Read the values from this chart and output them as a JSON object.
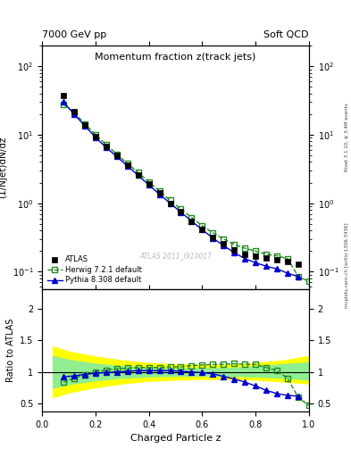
{
  "title_main": "Momentum fraction z(track jets)",
  "top_left_label": "7000 GeV pp",
  "top_right_label": "Soft QCD",
  "ylabel_main": "(1/Njet)dN/dz",
  "ylabel_ratio": "Ratio to ATLAS",
  "xlabel": "Charged Particle z",
  "watermark": "ATLAS 2011_I919017",
  "right_label_top": "Rivet 3.1.10, ≥ 3.4M events",
  "right_label_bot": "mcplots.cern.ch [arXiv:1306.3436]",
  "xlim": [
    0.0,
    1.0
  ],
  "ylim_main": [
    0.055,
    200
  ],
  "ylim_ratio": [
    0.38,
    2.3
  ],
  "atlas_x": [
    0.08,
    0.12,
    0.16,
    0.2,
    0.24,
    0.28,
    0.32,
    0.36,
    0.4,
    0.44,
    0.48,
    0.52,
    0.56,
    0.6,
    0.64,
    0.68,
    0.72,
    0.76,
    0.8,
    0.84,
    0.88,
    0.92,
    0.96
  ],
  "atlas_y": [
    38.0,
    22.0,
    14.0,
    9.5,
    6.8,
    5.0,
    3.6,
    2.6,
    1.9,
    1.4,
    1.0,
    0.75,
    0.55,
    0.42,
    0.32,
    0.26,
    0.21,
    0.18,
    0.17,
    0.16,
    0.15,
    0.14,
    0.13
  ],
  "herwig_x": [
    0.08,
    0.12,
    0.16,
    0.2,
    0.24,
    0.28,
    0.32,
    0.36,
    0.4,
    0.44,
    0.48,
    0.52,
    0.56,
    0.6,
    0.64,
    0.68,
    0.72,
    0.76,
    0.8,
    0.84,
    0.88,
    0.92,
    0.96,
    1.0
  ],
  "herwig_y": [
    28.0,
    21.0,
    14.5,
    10.0,
    7.2,
    5.2,
    3.8,
    2.8,
    2.05,
    1.5,
    1.1,
    0.82,
    0.62,
    0.47,
    0.37,
    0.3,
    0.25,
    0.22,
    0.2,
    0.18,
    0.17,
    0.155,
    0.085,
    0.072
  ],
  "pythia_x": [
    0.08,
    0.12,
    0.16,
    0.2,
    0.24,
    0.28,
    0.32,
    0.36,
    0.4,
    0.44,
    0.48,
    0.52,
    0.56,
    0.6,
    0.64,
    0.68,
    0.72,
    0.76,
    0.8,
    0.84,
    0.88,
    0.92,
    0.96
  ],
  "pythia_y": [
    30.0,
    20.0,
    13.5,
    9.2,
    6.5,
    4.8,
    3.5,
    2.55,
    1.85,
    1.35,
    1.0,
    0.74,
    0.55,
    0.41,
    0.31,
    0.24,
    0.19,
    0.155,
    0.135,
    0.12,
    0.11,
    0.095,
    0.085
  ],
  "herwig_ratio_x": [
    0.08,
    0.12,
    0.16,
    0.2,
    0.24,
    0.28,
    0.32,
    0.36,
    0.4,
    0.44,
    0.48,
    0.52,
    0.56,
    0.6,
    0.64,
    0.68,
    0.72,
    0.76,
    0.8,
    0.84,
    0.88,
    0.92,
    0.96,
    1.0
  ],
  "herwig_ratio": [
    0.84,
    0.9,
    0.96,
    1.0,
    1.03,
    1.05,
    1.06,
    1.07,
    1.07,
    1.07,
    1.08,
    1.08,
    1.1,
    1.11,
    1.12,
    1.12,
    1.13,
    1.12,
    1.12,
    1.07,
    1.02,
    0.9,
    0.6,
    0.47
  ],
  "pythia_ratio_x": [
    0.08,
    0.12,
    0.16,
    0.2,
    0.24,
    0.28,
    0.32,
    0.36,
    0.4,
    0.44,
    0.48,
    0.52,
    0.56,
    0.6,
    0.64,
    0.68,
    0.72,
    0.76,
    0.8,
    0.84,
    0.88,
    0.92,
    0.96
  ],
  "pythia_ratio": [
    0.92,
    0.94,
    0.96,
    0.98,
    0.99,
    1.0,
    1.01,
    1.02,
    1.02,
    1.02,
    1.02,
    1.01,
    1.0,
    0.99,
    0.97,
    0.93,
    0.89,
    0.84,
    0.78,
    0.71,
    0.66,
    0.63,
    0.62
  ],
  "band_yellow_x": [
    0.04,
    0.1,
    0.2,
    0.3,
    0.4,
    0.5,
    0.6,
    0.7,
    0.8,
    0.9,
    1.0
  ],
  "band_yellow_lo": [
    0.6,
    0.68,
    0.76,
    0.82,
    0.86,
    0.88,
    0.89,
    0.89,
    0.88,
    0.85,
    0.82
  ],
  "band_yellow_hi": [
    1.4,
    1.32,
    1.24,
    1.18,
    1.14,
    1.12,
    1.11,
    1.11,
    1.14,
    1.18,
    1.25
  ],
  "band_green_x": [
    0.04,
    0.1,
    0.2,
    0.3,
    0.4,
    0.5,
    0.6,
    0.7,
    0.8,
    0.9,
    1.0
  ],
  "band_green_lo": [
    0.75,
    0.81,
    0.87,
    0.91,
    0.93,
    0.94,
    0.94,
    0.94,
    0.93,
    0.91,
    0.88
  ],
  "band_green_hi": [
    1.25,
    1.19,
    1.13,
    1.09,
    1.07,
    1.06,
    1.06,
    1.06,
    1.09,
    1.12,
    1.15
  ],
  "color_atlas": "#000000",
  "color_herwig": "#228B22",
  "color_pythia": "#0000cc",
  "color_band_yellow": "#ffff00",
  "color_band_green": "#90ee90",
  "legend_entries": [
    "ATLAS",
    "Herwig 7.2.1 default",
    "Pythia 8.308 default"
  ]
}
